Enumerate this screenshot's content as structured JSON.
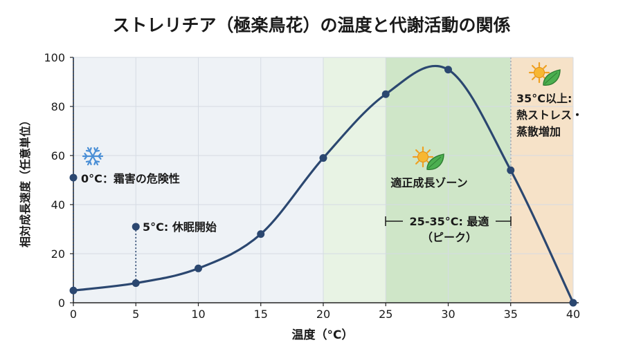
{
  "chart_data": {
    "type": "line",
    "title": "ストレリチア（極楽鳥花）の温度と代謝活動の関係",
    "xlabel": "温度（°C）",
    "ylabel": "相対成長速度（任意単位）",
    "xlim": [
      0,
      40
    ],
    "ylim": [
      0,
      100
    ],
    "xticks": [
      0,
      5,
      10,
      15,
      20,
      25,
      30,
      35,
      40
    ],
    "yticks": [
      0,
      20,
      40,
      60,
      80,
      100
    ],
    "grid": true,
    "legend": "none",
    "series": [
      {
        "x": [
          0,
          5,
          10,
          15,
          20,
          25,
          30,
          35,
          40
        ],
        "y": [
          5,
          8,
          14,
          28,
          59,
          85,
          95,
          54,
          0
        ]
      }
    ],
    "zones": [
      {
        "from": 20,
        "to": 25,
        "style": "light-green"
      },
      {
        "from": 25,
        "to": 35,
        "style": "green"
      },
      {
        "from": 35,
        "to": 40,
        "style": "orange"
      }
    ],
    "annotations": [
      {
        "id": "frost",
        "x": 0,
        "y": 51,
        "text": "0°C：霜害の危険性",
        "icon": "snowflake-icon"
      },
      {
        "id": "dormancy",
        "x": 5,
        "y": 31,
        "text": "5°C: 休眠開始"
      },
      {
        "id": "zone",
        "text": "適正成長ゾーン",
        "icon": "sun-leaf-icon"
      },
      {
        "id": "optimal",
        "lines": [
          "25-35°C: 最適",
          "（ピーク）"
        ]
      },
      {
        "id": "heat",
        "lines": [
          "35°C以上:",
          "熱ストレス・",
          "蒸散増加"
        ],
        "icon": "sun-leaf-icon"
      }
    ],
    "colors": {
      "line": "#2b4770",
      "marker": "#2b4770",
      "zone_light_green": "#e8f3e4",
      "zone_green": "#cfe6c8",
      "zone_orange": "#f6e2c8",
      "grid": "#d5dbe3",
      "cold_bg": "#eef2f6"
    }
  }
}
